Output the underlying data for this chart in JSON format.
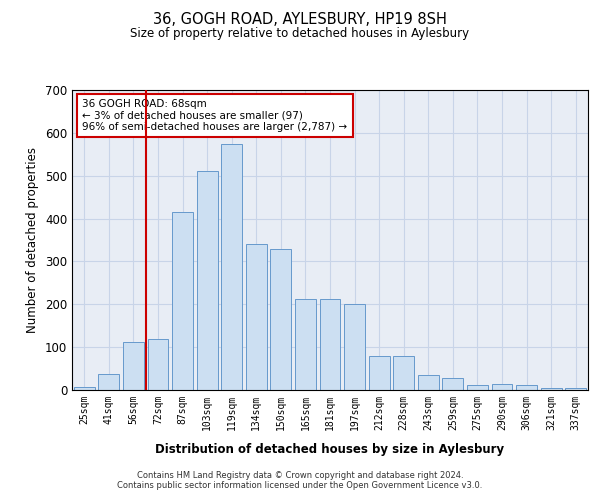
{
  "title": "36, GOGH ROAD, AYLESBURY, HP19 8SH",
  "subtitle": "Size of property relative to detached houses in Aylesbury",
  "xlabel": "Distribution of detached houses by size in Aylesbury",
  "ylabel": "Number of detached properties",
  "categories": [
    "25sqm",
    "41sqm",
    "56sqm",
    "72sqm",
    "87sqm",
    "103sqm",
    "119sqm",
    "134sqm",
    "150sqm",
    "165sqm",
    "181sqm",
    "197sqm",
    "212sqm",
    "228sqm",
    "243sqm",
    "259sqm",
    "275sqm",
    "290sqm",
    "306sqm",
    "321sqm",
    "337sqm"
  ],
  "values": [
    8,
    38,
    112,
    118,
    415,
    510,
    575,
    340,
    330,
    212,
    212,
    200,
    80,
    80,
    35,
    27,
    12,
    13,
    12,
    5,
    5
  ],
  "bar_color": "#ccdff2",
  "bar_edge_color": "#6699cc",
  "vline_color": "#cc0000",
  "annotation_text": "36 GOGH ROAD: 68sqm\n← 3% of detached houses are smaller (97)\n96% of semi-detached houses are larger (2,787) →",
  "annotation_box_color": "#ffffff",
  "annotation_box_edge": "#cc0000",
  "footer": "Contains HM Land Registry data © Crown copyright and database right 2024.\nContains public sector information licensed under the Open Government Licence v3.0.",
  "bg_color": "#ffffff",
  "plot_bg_color": "#e8edf5",
  "grid_color": "#c8d4e8",
  "ylim": [
    0,
    700
  ],
  "yticks": [
    0,
    100,
    200,
    300,
    400,
    500,
    600,
    700
  ]
}
